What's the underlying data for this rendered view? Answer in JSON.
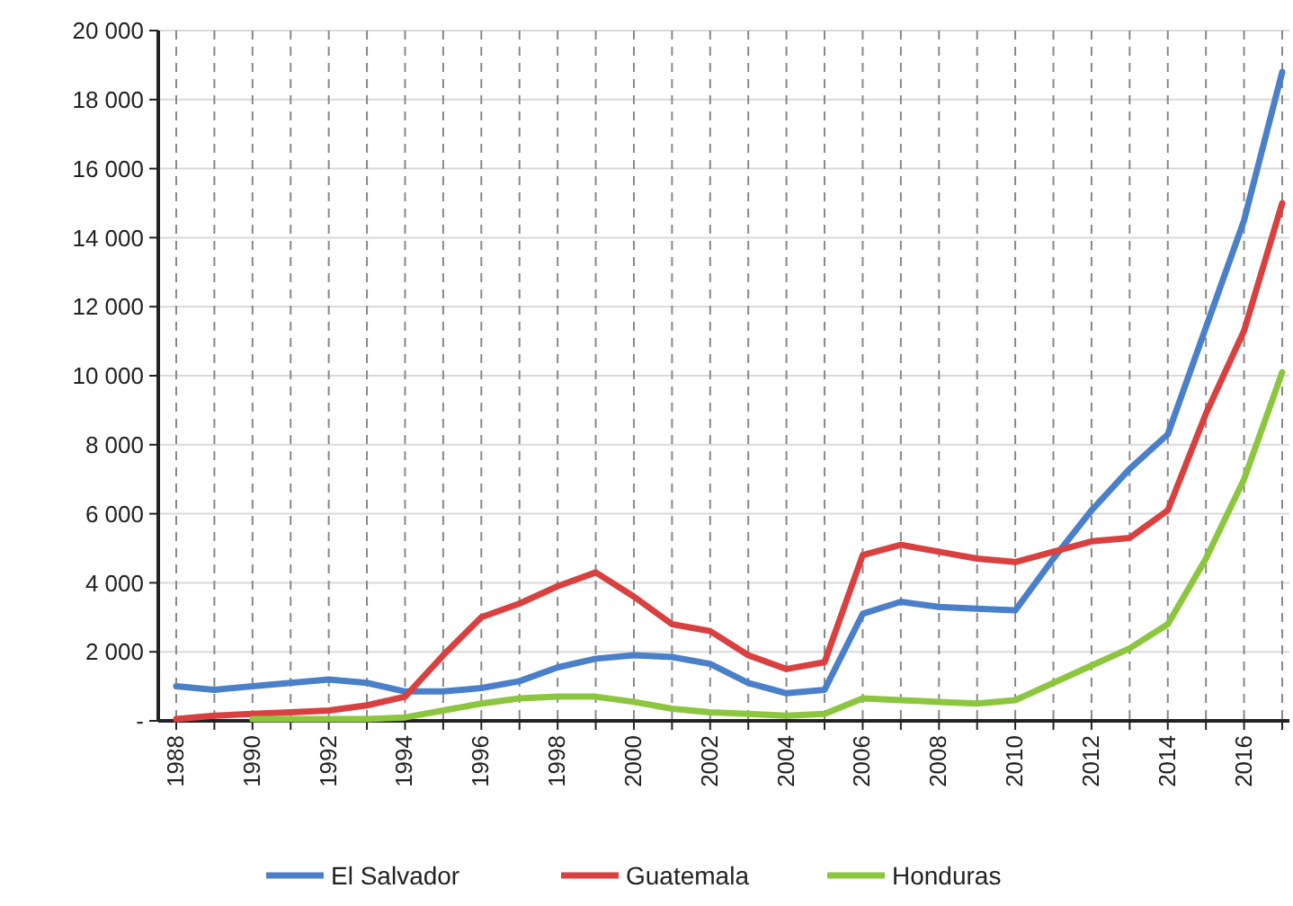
{
  "chart_data": {
    "type": "line",
    "categories": [
      "1988",
      null,
      "1990",
      null,
      "1992",
      null,
      "1994",
      null,
      "1996",
      null,
      "1998",
      null,
      "2000",
      null,
      "2002",
      null,
      "2004",
      null,
      "2006",
      null,
      "2008",
      null,
      "2010",
      null,
      "2012",
      null,
      "2014",
      null,
      "2016",
      null
    ],
    "ylim": [
      0,
      20000
    ],
    "yticks": [
      {
        "value": 0,
        "label": "-"
      },
      {
        "value": 2000,
        "label": "2 000"
      },
      {
        "value": 4000,
        "label": "4 000"
      },
      {
        "value": 6000,
        "label": "6 000"
      },
      {
        "value": 8000,
        "label": "8 000"
      },
      {
        "value": 10000,
        "label": "10 000"
      },
      {
        "value": 12000,
        "label": "12 000"
      },
      {
        "value": 14000,
        "label": "14 000"
      },
      {
        "value": 16000,
        "label": "16 000"
      },
      {
        "value": 18000,
        "label": "18 000"
      },
      {
        "value": 20000,
        "label": "20 000"
      }
    ],
    "grid": true,
    "legend": "bottom",
    "marker": "none",
    "line_style": "solid",
    "series": [
      {
        "name": "El Salvador",
        "color": "#4a7fc9",
        "values": [
          1000,
          900,
          1000,
          1100,
          1200,
          1100,
          850,
          850,
          950,
          1150,
          1550,
          1800,
          1900,
          1850,
          1650,
          1100,
          800,
          900,
          3100,
          3450,
          3300,
          3250,
          3200,
          4700,
          6100,
          7300,
          8300,
          11400,
          14500,
          18800
        ]
      },
      {
        "name": "Guatemala",
        "color": "#d94040",
        "values": [
          50,
          150,
          200,
          250,
          300,
          450,
          700,
          1900,
          3000,
          3400,
          3900,
          4300,
          3600,
          2800,
          2600,
          1900,
          1500,
          1700,
          4800,
          5100,
          4900,
          4700,
          4600,
          4900,
          5200,
          5300,
          6100,
          8900,
          11300,
          15000
        ]
      },
      {
        "name": "Honduras",
        "color": "#8cc63f",
        "values": [
          null,
          null,
          50,
          50,
          50,
          50,
          100,
          300,
          500,
          650,
          700,
          700,
          550,
          350,
          250,
          200,
          150,
          200,
          650,
          600,
          550,
          500,
          600,
          1100,
          1600,
          2100,
          2800,
          4700,
          7000,
          10100
        ]
      }
    ]
  }
}
